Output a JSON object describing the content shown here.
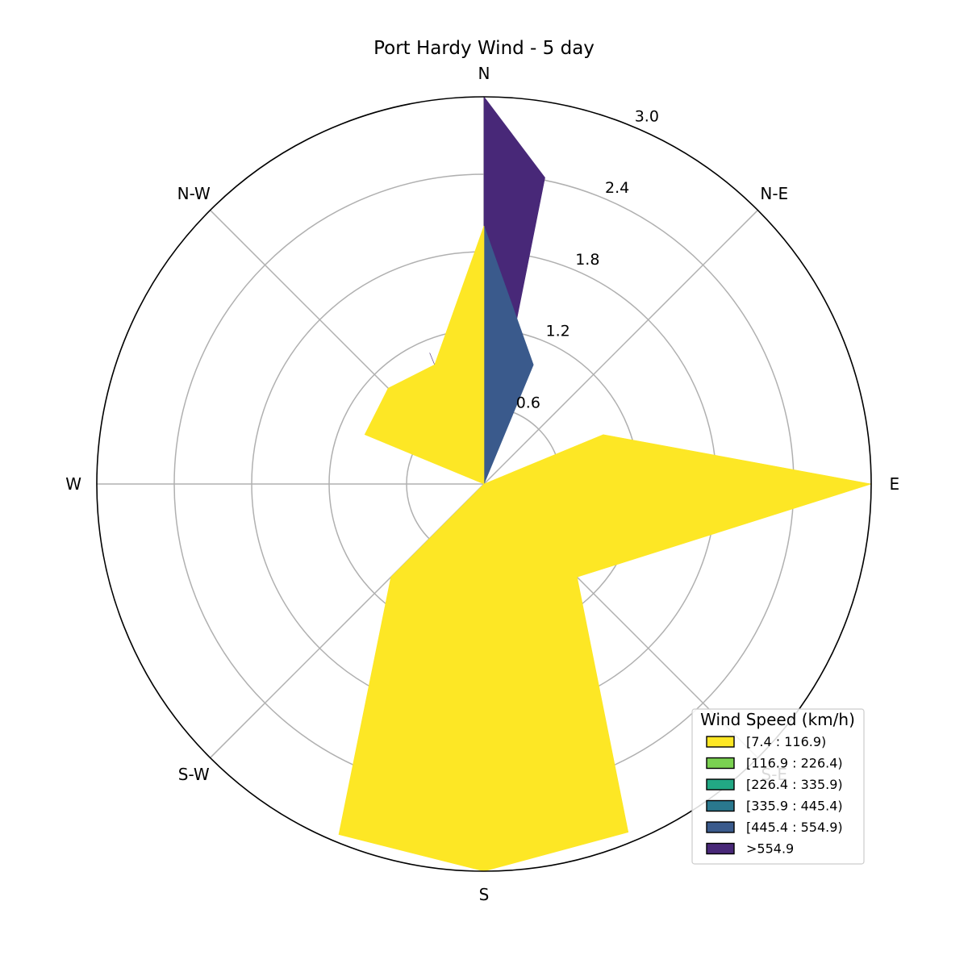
{
  "chart_data": {
    "type": "windrose",
    "title": "Port Hardy Wind - 5 day",
    "directions": [
      "N",
      "N-E",
      "E",
      "S-E",
      "S",
      "S-W",
      "W",
      "N-W"
    ],
    "sector_angles_deg": [
      0,
      45,
      90,
      135,
      180,
      225,
      270,
      315
    ],
    "radial_ticks": [
      "0.6",
      "1.2",
      "1.8",
      "2.4",
      "3.0"
    ],
    "radial_tick_values": [
      0.6,
      1.2,
      1.8,
      2.4,
      3.0
    ],
    "rmax": 3.0,
    "grid": true,
    "legend": {
      "title": "Wind Speed (km/h)",
      "placement": "lower-right",
      "bins": [
        {
          "label": "[7.4 : 116.9)",
          "color": "#fde725"
        },
        {
          "label": "[116.9 : 226.4)",
          "color": "#7ad151"
        },
        {
          "label": "[226.4 : 335.9)",
          "color": "#22a884"
        },
        {
          "label": "[335.9 : 445.4)",
          "color": "#2a788e"
        },
        {
          "label": "[445.4 : 554.9)",
          "color": "#3a5a8c"
        },
        {
          "label": ">554.9",
          "color": "#482878"
        }
      ]
    },
    "series": [
      {
        "color": "#482878",
        "points": [
          {
            "deg": 0,
            "r": 3.0
          },
          {
            "deg": 11.25,
            "r": 2.42
          },
          {
            "deg": 22.5,
            "r": 0.0
          },
          {
            "deg": 337.5,
            "r": 1.1
          }
        ]
      },
      {
        "color": "#3a5a8c",
        "points": [
          {
            "deg": 0,
            "r": 2.0
          },
          {
            "deg": 22.5,
            "r": 1.0
          },
          {
            "deg": 45,
            "r": 0.0
          }
        ]
      },
      {
        "color": "#fde725",
        "points": [
          {
            "deg": 0,
            "r": 2.0
          },
          {
            "deg": 337.5,
            "r": 1.0
          },
          {
            "deg": 315,
            "r": 1.05
          },
          {
            "deg": 292.5,
            "r": 1.0
          },
          {
            "deg": 270,
            "r": 0.0
          },
          {
            "deg": 225,
            "r": 1.02
          },
          {
            "deg": 202.5,
            "r": 2.94
          },
          {
            "deg": 180,
            "r": 3.0
          },
          {
            "deg": 157.5,
            "r": 2.92
          },
          {
            "deg": 135,
            "r": 1.02
          },
          {
            "deg": 90,
            "r": 3.0
          },
          {
            "deg": 67.5,
            "r": 1.0
          },
          {
            "deg": 45,
            "r": 0.0
          }
        ]
      }
    ]
  }
}
